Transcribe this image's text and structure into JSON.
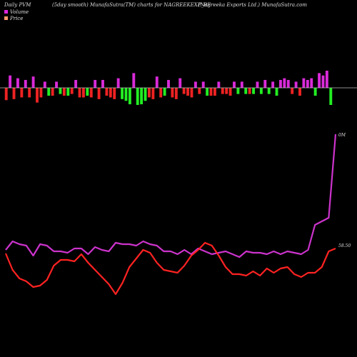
{
  "header": {
    "left": "Daily PVM",
    "center": "(5day smooth) MunafaSutra(TM) charts for NAGREEKEXP_BE",
    "right": "(Nagreeka  Exports Ltd.) MunafaSutra.com"
  },
  "legend": [
    {
      "label": "Volume",
      "color": "#dd22dd"
    },
    {
      "label": "Price",
      "color": "#ff9a6a"
    }
  ],
  "colors": {
    "bar_up": "#d92ad9",
    "bar_down_red": "#ee2222",
    "bar_down_green": "#22ee22",
    "volume_line": "#cc33cc",
    "price_line": "#ff2222",
    "zero_line": "#bbbbbb"
  },
  "chart_data": [
    {
      "type": "bar",
      "name": "pvm-bars",
      "ylim": [
        -1,
        1
      ],
      "values": [
        -0.72,
        0.72,
        -0.66,
        0.56,
        -0.56,
        0.46,
        -0.56,
        0.66,
        -0.86,
        -0.56,
        0.36,
        -0.46,
        -0.46,
        0.36,
        -0.36,
        -0.46,
        -0.46,
        -0.36,
        0.46,
        -0.56,
        -0.56,
        -0.46,
        -0.56,
        0.46,
        -0.66,
        0.46,
        -0.46,
        -0.56,
        -0.66,
        0.56,
        -0.66,
        -0.76,
        -0.96,
        0.86,
        -1.0,
        -0.96,
        -0.76,
        -0.56,
        -0.66,
        0.66,
        -0.56,
        -0.46,
        0.46,
        -0.56,
        -0.66,
        0.56,
        -0.36,
        -0.46,
        -0.56,
        0.36,
        -0.36,
        0.36,
        -0.46,
        -0.46,
        -0.46,
        0.36,
        -0.36,
        -0.36,
        -0.46,
        0.36,
        -0.36,
        0.36,
        -0.36,
        -0.36,
        -0.36,
        0.36,
        -0.36,
        0.46,
        -0.36,
        0.36,
        -0.46,
        0.46,
        0.56,
        0.46,
        -0.36,
        0.36,
        -0.46,
        0.56,
        0.46,
        0.56,
        -0.46,
        0.86,
        0.72,
        1.0,
        -1.0
      ],
      "bar_colors": [
        "r",
        "m",
        "r",
        "m",
        "r",
        "m",
        "r",
        "m",
        "r",
        "r",
        "m",
        "g",
        "r",
        "m",
        "g",
        "r",
        "g",
        "r",
        "m",
        "r",
        "r",
        "g",
        "r",
        "m",
        "r",
        "m",
        "r",
        "r",
        "r",
        "m",
        "g",
        "g",
        "g",
        "m",
        "g",
        "g",
        "g",
        "r",
        "r",
        "m",
        "r",
        "g",
        "m",
        "r",
        "r",
        "m",
        "r",
        "r",
        "r",
        "m",
        "r",
        "m",
        "g",
        "r",
        "r",
        "m",
        "r",
        "r",
        "r",
        "m",
        "g",
        "m",
        "g",
        "r",
        "g",
        "m",
        "g",
        "m",
        "g",
        "m",
        "g",
        "m",
        "m",
        "m",
        "r",
        "m",
        "r",
        "m",
        "m",
        "m",
        "g",
        "m",
        "m",
        "m",
        "g"
      ]
    },
    {
      "type": "line",
      "name": "volume-price-lines",
      "series": [
        {
          "id": "volume",
          "values": [
            0.8,
            0.92,
            0.88,
            0.86,
            0.72,
            0.88,
            0.86,
            0.78,
            0.78,
            0.76,
            0.82,
            0.82,
            0.74,
            0.84,
            0.8,
            0.78,
            0.9,
            0.88,
            0.88,
            0.86,
            0.92,
            0.88,
            0.86,
            0.78,
            0.78,
            0.74,
            0.8,
            0.74,
            0.82,
            0.78,
            0.74,
            0.76,
            0.78,
            0.74,
            0.7,
            0.78,
            0.76,
            0.76,
            0.74,
            0.78,
            0.74,
            0.78,
            0.76,
            0.74,
            0.8,
            1.15,
            1.2,
            1.25,
            2.42
          ]
        },
        {
          "id": "price",
          "label": "58.50",
          "values": [
            0.75,
            0.52,
            0.4,
            0.36,
            0.28,
            0.3,
            0.38,
            0.58,
            0.66,
            0.66,
            0.64,
            0.74,
            0.62,
            0.52,
            0.42,
            0.32,
            0.18,
            0.34,
            0.56,
            0.68,
            0.8,
            0.76,
            0.62,
            0.52,
            0.5,
            0.48,
            0.58,
            0.72,
            0.8,
            0.9,
            0.86,
            0.72,
            0.56,
            0.46,
            0.46,
            0.44,
            0.5,
            0.44,
            0.54,
            0.48,
            0.54,
            0.56,
            0.46,
            0.42,
            0.48,
            0.48,
            0.56,
            0.78,
            0.82
          ]
        }
      ],
      "annotations": [
        {
          "text": "0M"
        },
        {
          "text": "58.50"
        }
      ]
    }
  ]
}
